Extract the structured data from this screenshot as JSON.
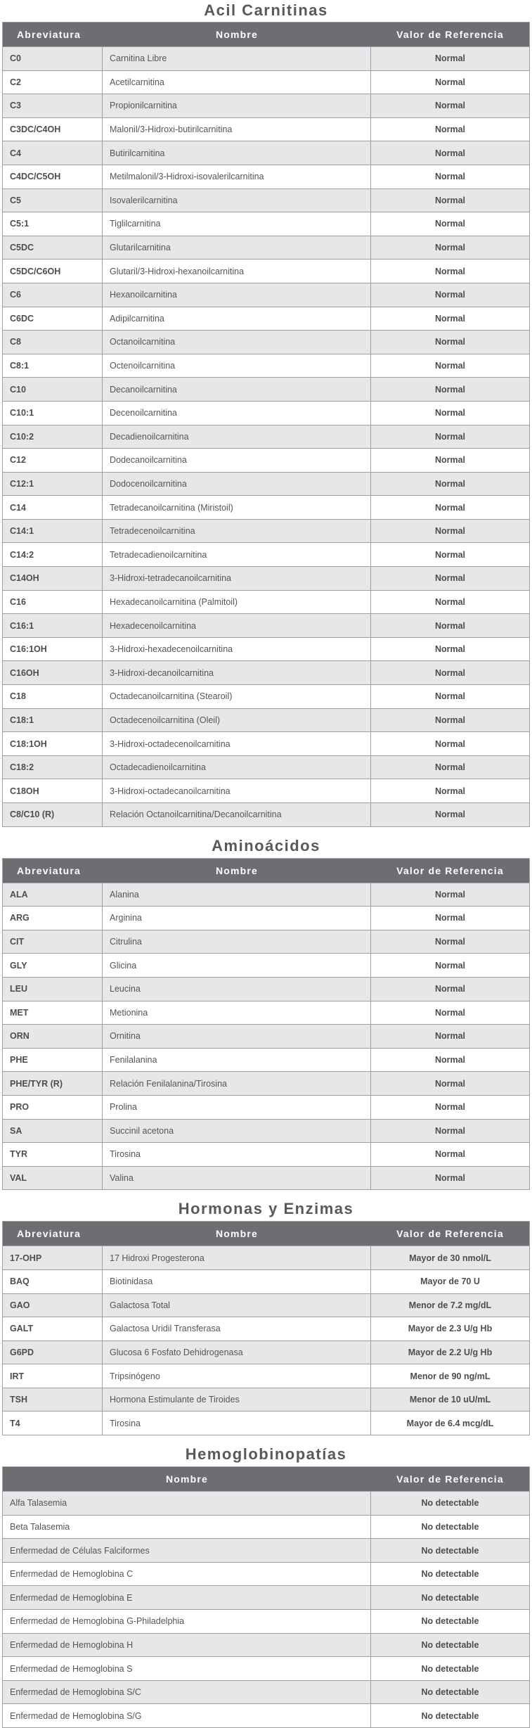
{
  "headers": {
    "abbr": "Abreviatura",
    "name": "Nombre",
    "ref": "Valor de Referencia"
  },
  "sections": [
    {
      "title": "Acil Carnitinas",
      "rows": [
        [
          "C0",
          "Carnitina Libre",
          "Normal"
        ],
        [
          "C2",
          "Acetilcarnitina",
          "Normal"
        ],
        [
          "C3",
          "Propionilcarnitina",
          "Normal"
        ],
        [
          "C3DC/C4OH",
          "Malonil/3-Hidroxi-butirilcarnitina",
          "Normal"
        ],
        [
          "C4",
          "Butirilcarnitina",
          "Normal"
        ],
        [
          "C4DC/C5OH",
          "Metilmalonil/3-Hidroxi-isovalerilcarnitina",
          "Normal"
        ],
        [
          "C5",
          "Isovalerilcarnitina",
          "Normal"
        ],
        [
          "C5:1",
          "Tiglilcarnitina",
          "Normal"
        ],
        [
          "C5DC",
          "Glutarilcarnitina",
          "Normal"
        ],
        [
          "C5DC/C6OH",
          "Glutaril/3-Hidroxi-hexanoilcarnitina",
          "Normal"
        ],
        [
          "C6",
          "Hexanoilcarnitina",
          "Normal"
        ],
        [
          "C6DC",
          "Adipilcarnitina",
          "Normal"
        ],
        [
          "C8",
          "Octanoilcarnitina",
          "Normal"
        ],
        [
          "C8:1",
          "Octenoilcarnitina",
          "Normal"
        ],
        [
          "C10",
          "Decanoilcarnitina",
          "Normal"
        ],
        [
          "C10:1",
          "Decenoilcarnitina",
          "Normal"
        ],
        [
          "C10:2",
          "Decadienoilcarnitina",
          "Normal"
        ],
        [
          "C12",
          "Dodecanoilcarnitina",
          "Normal"
        ],
        [
          "C12:1",
          "Dodocenoilcarnitina",
          "Normal"
        ],
        [
          "C14",
          "Tetradecanoilcarnitina (Miristoil)",
          "Normal"
        ],
        [
          "C14:1",
          "Tetradecenoilcarnitina",
          "Normal"
        ],
        [
          "C14:2",
          "Tetradecadienoilcarnitina",
          "Normal"
        ],
        [
          "C14OH",
          "3-Hidroxi-tetradecanoilcarnitina",
          "Normal"
        ],
        [
          "C16",
          "Hexadecanoilcarnitina (Palmitoil)",
          "Normal"
        ],
        [
          "C16:1",
          "Hexadecenoilcarnitina",
          "Normal"
        ],
        [
          "C16:1OH",
          "3-Hidroxi-hexadecenoilcarnitina",
          "Normal"
        ],
        [
          "C16OH",
          "3-Hidroxi-decanoilcarnitina",
          "Normal"
        ],
        [
          "C18",
          "Octadecanoilcarnitina (Stearoil)",
          "Normal"
        ],
        [
          "C18:1",
          "Octadecenoilcarnitina (Oleil)",
          "Normal"
        ],
        [
          "C18:1OH",
          "3-Hidroxi-octadecenoilcarnitina",
          "Normal"
        ],
        [
          "C18:2",
          "Octadecadienoilcarnitina",
          "Normal"
        ],
        [
          "C18OH",
          "3-Hidroxi-octadecanoilcarnitina",
          "Normal"
        ],
        [
          "C8/C10 (R)",
          "Relación Octanoilcarnitina/Decanoilcarnitina",
          "Normal"
        ]
      ]
    },
    {
      "title": "Aminoácidos",
      "rows": [
        [
          "ALA",
          "Alanina",
          "Normal"
        ],
        [
          "ARG",
          "Arginina",
          "Normal"
        ],
        [
          "CIT",
          "Citrulina",
          "Normal"
        ],
        [
          "GLY",
          "Glicina",
          "Normal"
        ],
        [
          "LEU",
          "Leucina",
          "Normal"
        ],
        [
          "MET",
          "Metionina",
          "Normal"
        ],
        [
          "ORN",
          "Ornitina",
          "Normal"
        ],
        [
          "PHE",
          "Fenilalanina",
          "Normal"
        ],
        [
          "PHE/TYR (R)",
          "Relación Fenilalanina/Tirosina",
          "Normal"
        ],
        [
          "PRO",
          "Prolina",
          "Normal"
        ],
        [
          "SA",
          "Succinil acetona",
          "Normal"
        ],
        [
          "TYR",
          "Tirosina",
          "Normal"
        ],
        [
          "VAL",
          "Valina",
          "Normal"
        ]
      ]
    },
    {
      "title": "Hormonas y Enzimas",
      "rows": [
        [
          "17-OHP",
          "17 Hidroxi Progesterona",
          "Mayor de 30 nmol/L"
        ],
        [
          "BAQ",
          "Biotinidasa",
          "Mayor de 70 U"
        ],
        [
          "GAO",
          "Galactosa Total",
          "Menor de 7.2 mg/dL"
        ],
        [
          "GALT",
          "Galactosa Uridil Transferasa",
          "Mayor de 2.3 U/g Hb"
        ],
        [
          "G6PD",
          "Glucosa 6 Fosfato Dehidrogenasa",
          "Mayor de 2.2 U/g Hb"
        ],
        [
          "IRT",
          "Tripsinógeno",
          "Menor de 90 ng/mL"
        ],
        [
          "TSH",
          "Hormona Estimulante de Tiroides",
          "Menor de 10 uU/mL"
        ],
        [
          "T4",
          "Tirosina",
          "Mayor de 6.4 mcg/dL"
        ]
      ]
    },
    {
      "title": "Hemoglobinopatías",
      "rows": [
        [
          "Alfa Talasemia",
          "No detectable"
        ],
        [
          "Beta Talasemia",
          "No detectable"
        ],
        [
          "Enfermedad de Células Falciformes",
          "No detectable"
        ],
        [
          "Enfermedad de Hemoglobina C",
          "No detectable"
        ],
        [
          "Enfermedad de Hemoglobina E",
          "No detectable"
        ],
        [
          "Enfermedad de Hemoglobina G-Philadelphia",
          "No detectable"
        ],
        [
          "Enfermedad de Hemoglobina H",
          "No detectable"
        ],
        [
          "Enfermedad de Hemoglobina S",
          "No detectable"
        ],
        [
          "Enfermedad de Hemoglobina S/C",
          "No detectable"
        ],
        [
          "Enfermedad de Hemoglobina S/G",
          "No detectable"
        ]
      ]
    }
  ]
}
